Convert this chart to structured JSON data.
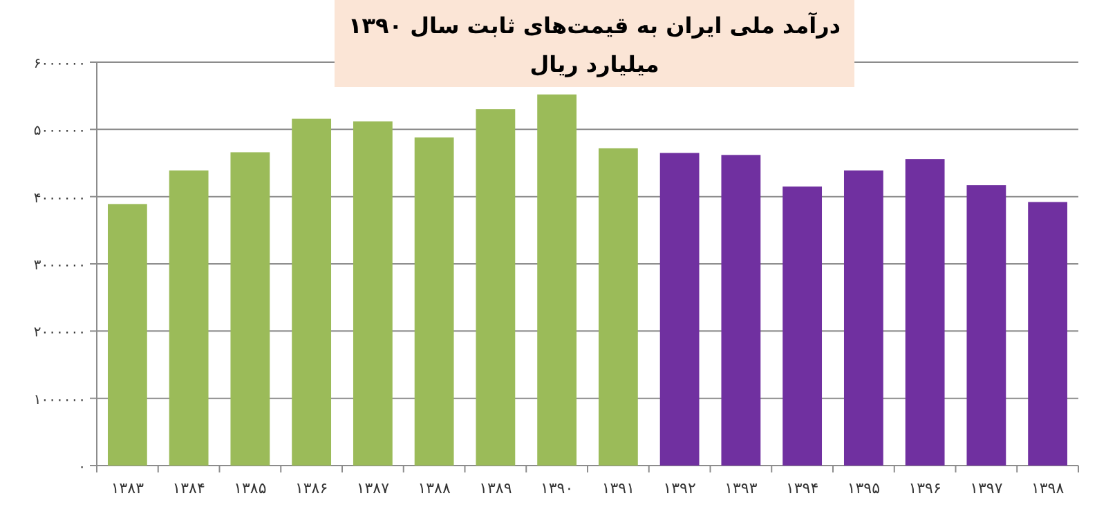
{
  "chart_data": {
    "type": "bar",
    "title": "درآمد ملی ایران به قیمت‌های ثابت سال ۱۳۹۰",
    "subtitle": "میلیارد ریال",
    "categories": [
      "۱۳۸۳",
      "۱۳۸۴",
      "۱۳۸۵",
      "۱۳۸۶",
      "۱۳۸۷",
      "۱۳۸۸",
      "۱۳۸۹",
      "۱۳۹۰",
      "۱۳۹۱",
      "۱۳۹۲",
      "۱۳۹۳",
      "۱۳۹۴",
      "۱۳۹۵",
      "۱۳۹۶",
      "۱۳۹۷",
      "۱۳۹۸"
    ],
    "values": [
      3890000,
      4390000,
      4660000,
      5160000,
      5120000,
      4880000,
      5300000,
      5520000,
      4720000,
      4650000,
      4620000,
      4150000,
      4390000,
      4560000,
      4170000,
      3920000
    ],
    "colors": [
      "#9bbb59",
      "#9bbb59",
      "#9bbb59",
      "#9bbb59",
      "#9bbb59",
      "#9bbb59",
      "#9bbb59",
      "#9bbb59",
      "#9bbb59",
      "#7030a0",
      "#7030a0",
      "#7030a0",
      "#7030a0",
      "#7030a0",
      "#7030a0",
      "#7030a0"
    ],
    "ylim": [
      0,
      6000000
    ],
    "yticks": [
      {
        "value": 0,
        "label": "۰"
      },
      {
        "value": 1000000,
        "label": "۱۰۰۰۰۰۰"
      },
      {
        "value": 2000000,
        "label": "۲۰۰۰۰۰۰"
      },
      {
        "value": 3000000,
        "label": "۳۰۰۰۰۰۰"
      },
      {
        "value": 4000000,
        "label": "۴۰۰۰۰۰۰"
      },
      {
        "value": 5000000,
        "label": "۵۰۰۰۰۰۰"
      },
      {
        "value": 6000000,
        "label": "۶۰۰۰۰۰۰"
      }
    ],
    "grid": "y"
  }
}
